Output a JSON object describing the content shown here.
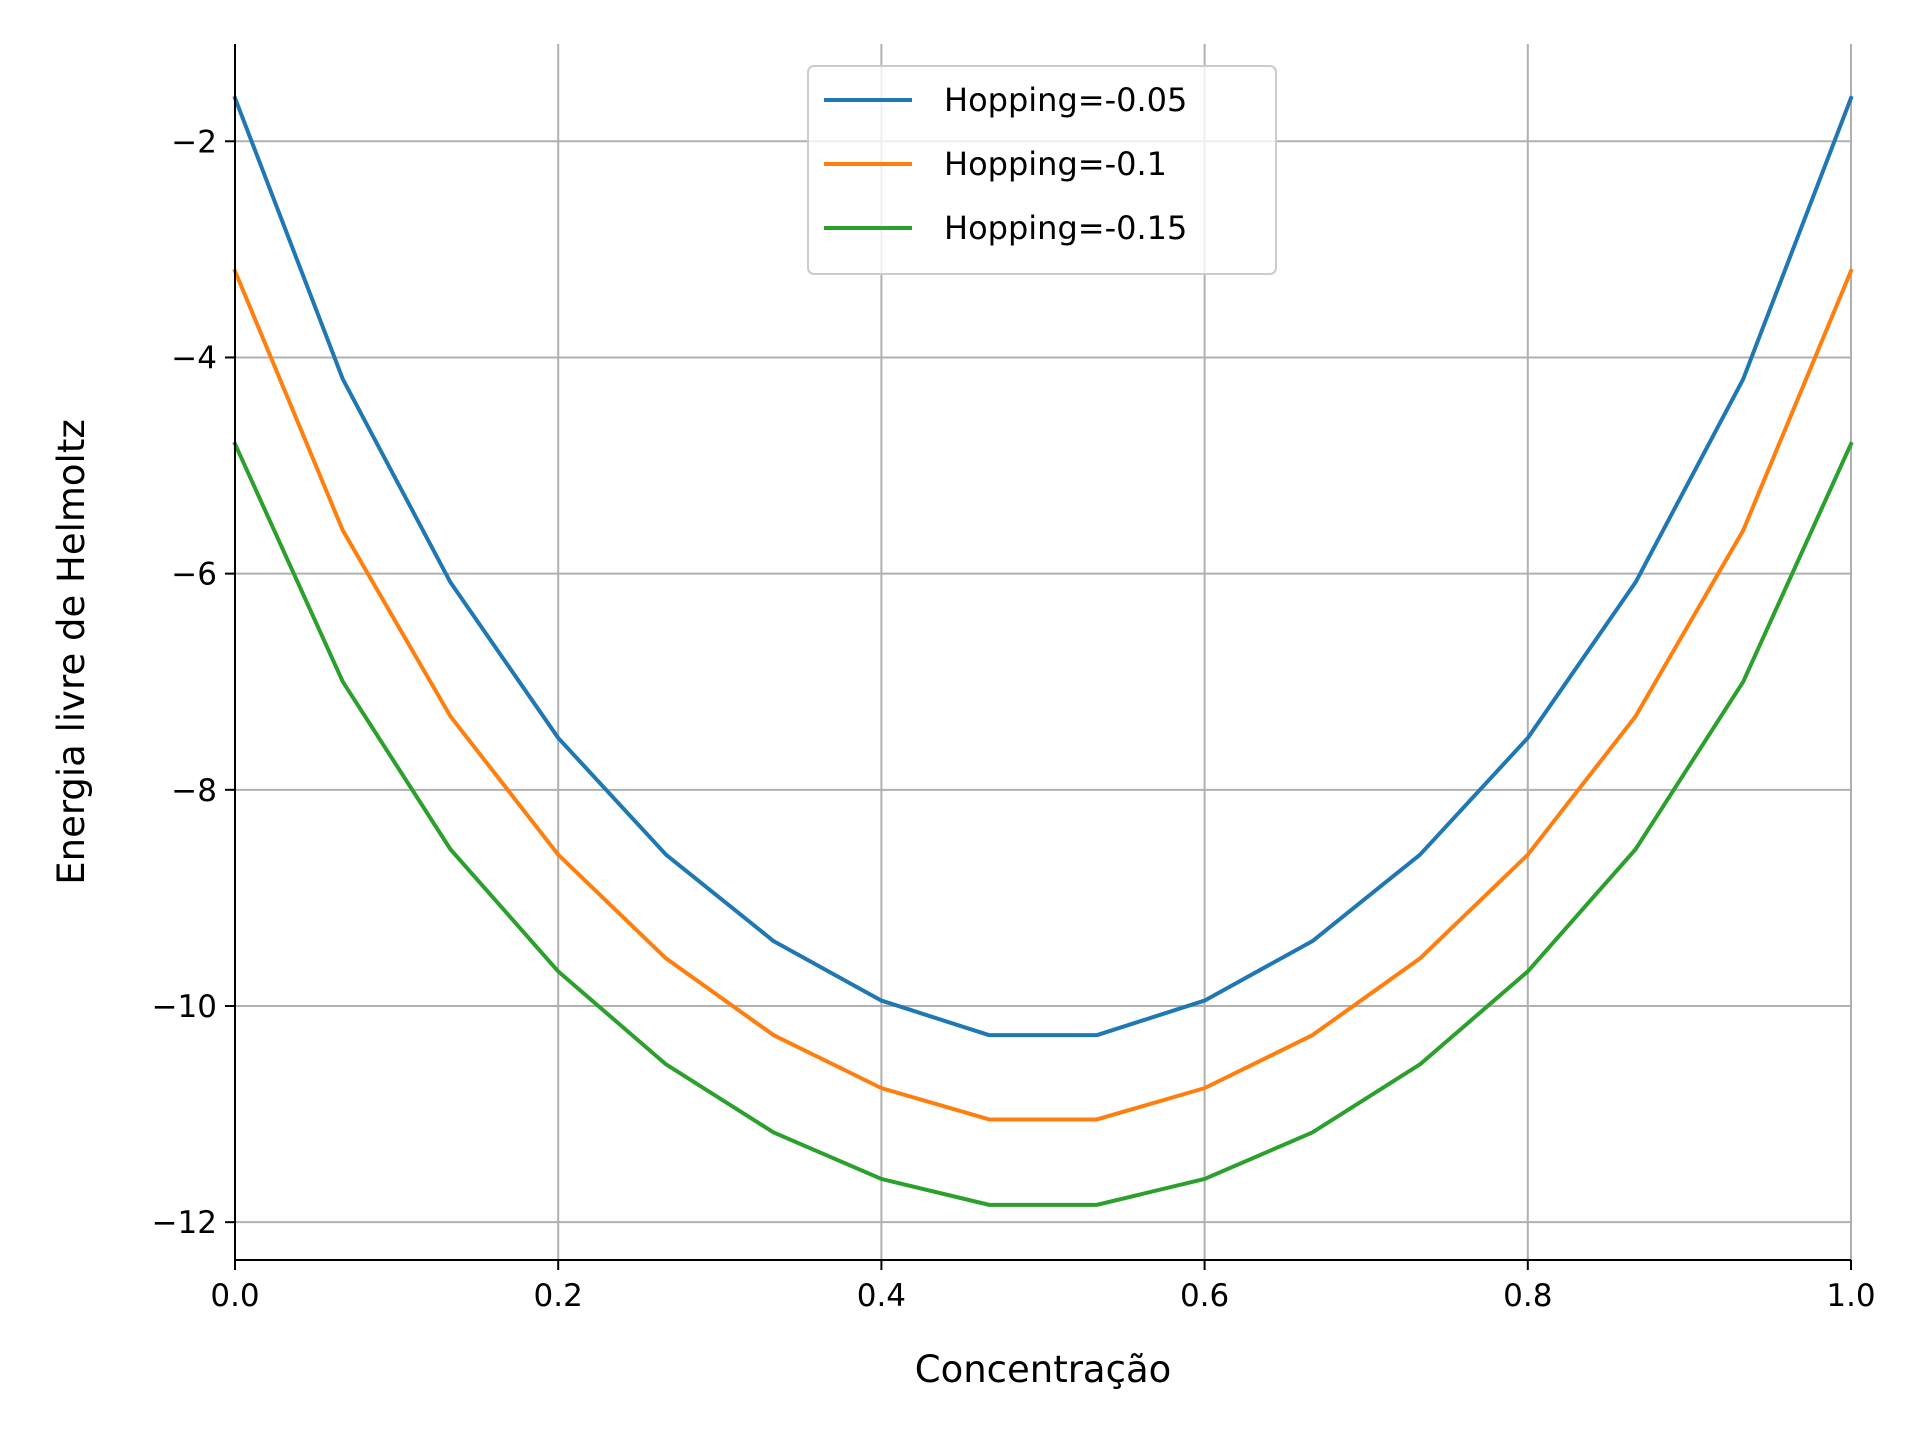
{
  "chart_data": {
    "type": "line",
    "xlabel": "Concentração",
    "ylabel": "Energia livre de Helmoltz",
    "xlim": [
      0.0,
      1.0
    ],
    "ylim": [
      -12.35,
      -1.1
    ],
    "xticks": [
      0.0,
      0.2,
      0.4,
      0.6,
      0.8,
      1.0
    ],
    "xtick_labels": [
      "0.0",
      "0.2",
      "0.4",
      "0.6",
      "0.8",
      "1.0"
    ],
    "yticks": [
      -2,
      -4,
      -6,
      -8,
      -10,
      -12
    ],
    "ytick_labels": [
      "−2",
      "−4",
      "−6",
      "−8",
      "−10",
      "−12"
    ],
    "grid": true,
    "legend_position": "top-center",
    "x": [
      0.0,
      0.0667,
      0.1333,
      0.2,
      0.2667,
      0.3333,
      0.4,
      0.4667,
      0.5333,
      0.6,
      0.6667,
      0.7333,
      0.8,
      0.8667,
      0.9333,
      1.0
    ],
    "series": [
      {
        "name": "Hopping=-0.05",
        "color": "#1f77b4",
        "values": [
          -1.6,
          -4.2,
          -6.08,
          -7.52,
          -8.6,
          -9.4,
          -9.95,
          -10.27,
          -10.27,
          -9.95,
          -9.4,
          -8.6,
          -7.52,
          -6.08,
          -4.2,
          -1.6
        ]
      },
      {
        "name": "Hopping=-0.1",
        "color": "#ff7f0e",
        "values": [
          -3.2,
          -5.6,
          -7.32,
          -8.6,
          -9.56,
          -10.27,
          -10.76,
          -11.05,
          -11.05,
          -10.76,
          -10.27,
          -9.56,
          -8.6,
          -7.32,
          -5.6,
          -3.2
        ]
      },
      {
        "name": "Hopping=-0.15",
        "color": "#2ca02c",
        "values": [
          -4.8,
          -7.0,
          -8.55,
          -9.68,
          -10.54,
          -11.17,
          -11.6,
          -11.84,
          -11.84,
          -11.6,
          -11.17,
          -10.54,
          -9.68,
          -8.55,
          -7.0,
          -4.8
        ]
      }
    ]
  }
}
